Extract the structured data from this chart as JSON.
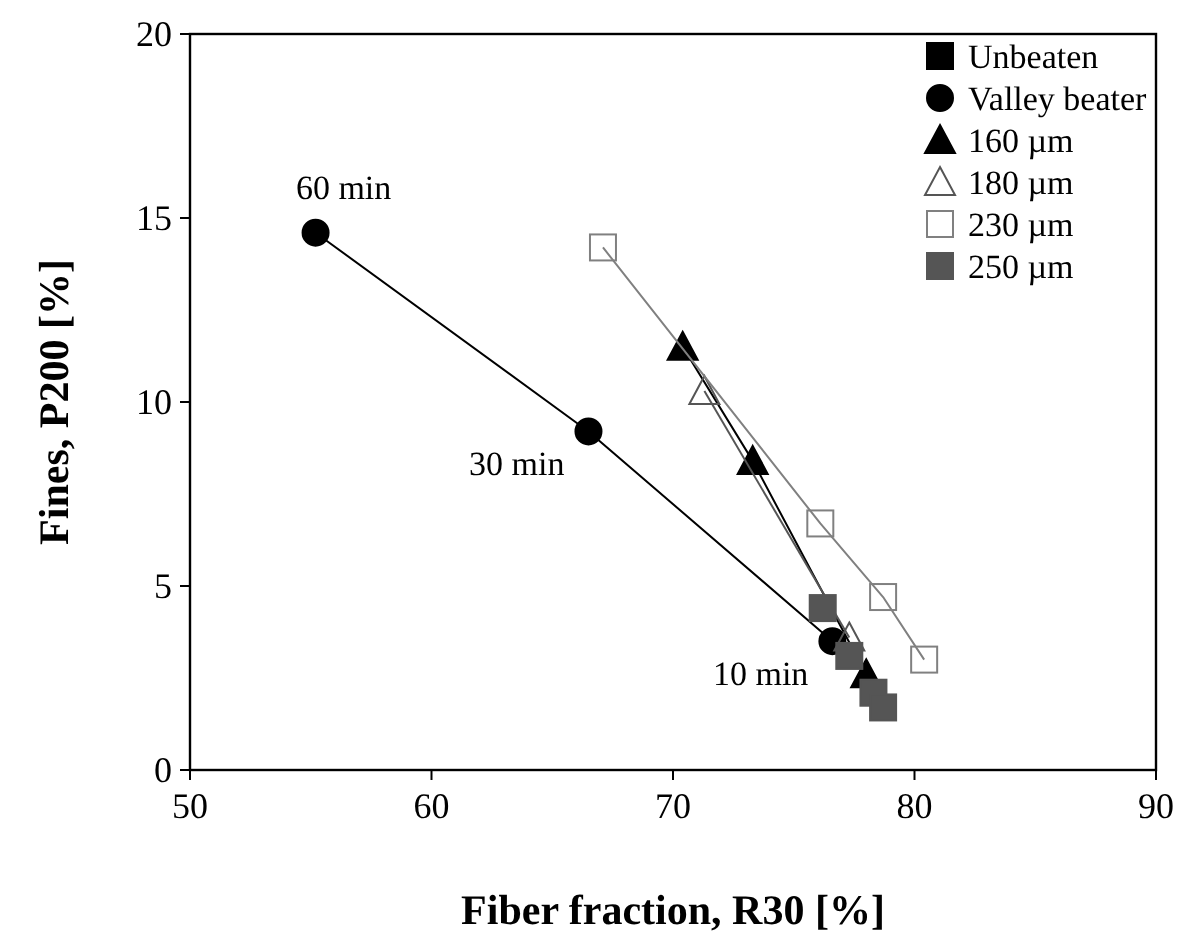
{
  "chart_data": {
    "type": "scatter",
    "xlabel": "Fiber fraction, R30 [%]",
    "ylabel": "Fines, P200 [%]",
    "xlim": [
      50,
      90
    ],
    "xticks": [
      50,
      60,
      70,
      80,
      90
    ],
    "ylim": [
      0,
      20
    ],
    "yticks": [
      0,
      5,
      10,
      15,
      20
    ],
    "grid": false,
    "legend": "top right",
    "series": [
      {
        "name": "Unbeaten",
        "marker": "square",
        "color": "#000000"
      },
      {
        "name": "Valley beater",
        "type": "line",
        "marker": "circle",
        "color": "#000000",
        "x": [
          55.2,
          66.5,
          76.6
        ],
        "values": [
          14.6,
          9.2,
          3.5
        ]
      },
      {
        "name": "160 µm",
        "type": "line",
        "marker": "triangle",
        "color": "#000000",
        "x": [
          70.4,
          73.3,
          78.0
        ],
        "values": [
          11.5,
          8.4,
          2.6
        ]
      },
      {
        "name": "180 µm",
        "type": "line",
        "marker": "triangle-open",
        "color": "#555555",
        "x": [
          71.3,
          77.3
        ],
        "values": [
          10.3,
          3.6
        ]
      },
      {
        "name": "230 µm",
        "type": "line",
        "marker": "square-open",
        "color": "#808080",
        "x": [
          67.1,
          76.1,
          78.7,
          80.4
        ],
        "values": [
          14.2,
          6.7,
          4.7,
          3.0
        ]
      },
      {
        "name": "250 µm",
        "marker": "square",
        "color": "#555555",
        "x": [
          76.2,
          77.3,
          78.3,
          78.7
        ],
        "values": [
          4.4,
          3.1,
          2.1,
          1.7
        ]
      }
    ],
    "annotations": [
      {
        "text": "60 min",
        "x": 55.2,
        "y": 14.6
      },
      {
        "text": "30 min",
        "x": 66.5,
        "y": 9.2
      },
      {
        "text": "10 min",
        "x": 76.6,
        "y": 3.5
      }
    ]
  }
}
